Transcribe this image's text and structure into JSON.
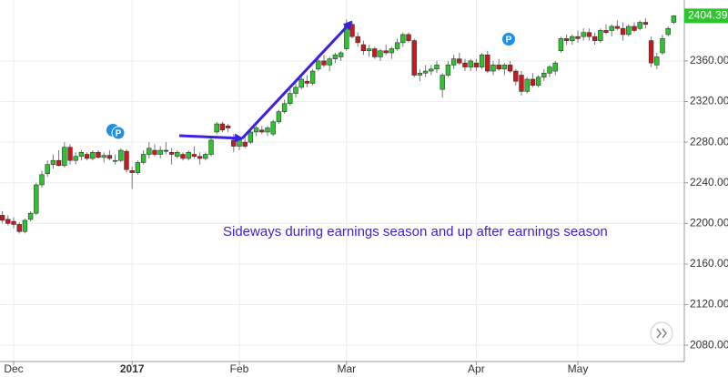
{
  "chart_data": {
    "type": "candlestick",
    "annotation": "Sideways during earnings season and up after earnings season",
    "markers": [
      "P",
      "P"
    ],
    "last_price": 2404.39,
    "up_color": "#2fc42f",
    "down_color": "#c8191f",
    "grid": true,
    "ylim": [
      2064,
      2420
    ],
    "yticks": [
      {
        "value": 2080,
        "label": "2080.00"
      },
      {
        "value": 2120,
        "label": "2120.00"
      },
      {
        "value": 2160,
        "label": "2160.00"
      },
      {
        "value": 2200,
        "label": "2200.00"
      },
      {
        "value": 2240,
        "label": "2240.00"
      },
      {
        "value": 2280,
        "label": "2280.00"
      },
      {
        "value": 2320,
        "label": "2320.00"
      },
      {
        "value": 2360,
        "label": "2360.00"
      }
    ],
    "categories": [
      null,
      null,
      "Dec",
      null,
      null,
      null,
      null,
      null,
      null,
      null,
      null,
      null,
      null,
      null,
      null,
      null,
      null,
      null,
      null,
      null,
      null,
      null,
      null,
      "2017",
      null,
      null,
      null,
      null,
      null,
      null,
      null,
      null,
      null,
      null,
      null,
      null,
      null,
      null,
      null,
      null,
      null,
      null,
      "Feb",
      null,
      null,
      null,
      null,
      null,
      null,
      null,
      null,
      null,
      null,
      null,
      null,
      null,
      null,
      null,
      null,
      null,
      null,
      "Mar",
      null,
      null,
      null,
      null,
      null,
      null,
      null,
      null,
      null,
      null,
      null,
      null,
      null,
      null,
      null,
      null,
      null,
      null,
      null,
      null,
      null,
      null,
      "Apr",
      null,
      null,
      null,
      null,
      null,
      null,
      null,
      null,
      null,
      null,
      null,
      null,
      null,
      null,
      null,
      null,
      null,
      "May",
      null,
      null,
      null,
      null,
      null,
      null,
      null,
      null,
      null,
      null,
      null,
      null,
      null,
      null,
      null,
      null,
      null
    ],
    "values": [
      [
        2208,
        2212,
        2200,
        2203
      ],
      [
        2204,
        2208,
        2198,
        2200
      ],
      [
        2202,
        2206,
        2195,
        2199
      ],
      [
        2199,
        2201,
        2190,
        2192
      ],
      [
        2192,
        2205,
        2190,
        2203
      ],
      [
        2204,
        2212,
        2202,
        2210
      ],
      [
        2210,
        2240,
        2208,
        2238
      ],
      [
        2238,
        2252,
        2235,
        2248
      ],
      [
        2249,
        2262,
        2246,
        2258
      ],
      [
        2258,
        2268,
        2254,
        2262
      ],
      [
        2262,
        2272,
        2256,
        2257
      ],
      [
        2257,
        2280,
        2255,
        2275
      ],
      [
        2275,
        2278,
        2258,
        2262
      ],
      [
        2262,
        2270,
        2258,
        2266
      ],
      [
        2266,
        2272,
        2262,
        2270
      ],
      [
        2268,
        2270,
        2262,
        2264
      ],
      [
        2264,
        2272,
        2262,
        2270
      ],
      [
        2270,
        2272,
        2264,
        2265
      ],
      [
        2265,
        2270,
        2260,
        2267
      ],
      [
        2267,
        2272,
        2262,
        2264
      ],
      [
        2262,
        2268,
        2258,
        2262
      ],
      [
        2262,
        2274,
        2260,
        2272
      ],
      [
        2271,
        2273,
        2250,
        2253
      ],
      [
        2252,
        2256,
        2234,
        2250
      ],
      [
        2250,
        2262,
        2248,
        2260
      ],
      [
        2260,
        2272,
        2258,
        2268
      ],
      [
        2268,
        2280,
        2264,
        2274
      ],
      [
        2272,
        2278,
        2266,
        2268
      ],
      [
        2268,
        2276,
        2264,
        2272
      ],
      [
        2272,
        2280,
        2268,
        2271
      ],
      [
        2270,
        2274,
        2258,
        2268
      ],
      [
        2266,
        2272,
        2264,
        2270
      ],
      [
        2268,
        2270,
        2262,
        2264
      ],
      [
        2264,
        2272,
        2262,
        2270
      ],
      [
        2268,
        2276,
        2264,
        2266
      ],
      [
        2266,
        2270,
        2258,
        2264
      ],
      [
        2264,
        2270,
        2262,
        2268
      ],
      [
        2268,
        2284,
        2266,
        2282
      ],
      [
        2290,
        2300,
        2288,
        2298
      ],
      [
        2298,
        2300,
        2290,
        2292
      ],
      [
        2296,
        2298,
        2290,
        2294
      ],
      [
        2282,
        2288,
        2270,
        2276
      ],
      [
        2276,
        2285,
        2272,
        2283
      ],
      [
        2280,
        2286,
        2274,
        2276
      ],
      [
        2280,
        2292,
        2278,
        2290
      ],
      [
        2290,
        2296,
        2286,
        2294
      ],
      [
        2292,
        2296,
        2288,
        2290
      ],
      [
        2290,
        2296,
        2286,
        2294
      ],
      [
        2288,
        2302,
        2286,
        2300
      ],
      [
        2300,
        2312,
        2298,
        2310
      ],
      [
        2310,
        2322,
        2308,
        2318
      ],
      [
        2318,
        2332,
        2316,
        2328
      ],
      [
        2328,
        2338,
        2324,
        2334
      ],
      [
        2334,
        2345,
        2332,
        2342
      ],
      [
        2340,
        2346,
        2334,
        2338
      ],
      [
        2338,
        2352,
        2336,
        2350
      ],
      [
        2352,
        2362,
        2350,
        2360
      ],
      [
        2360,
        2366,
        2354,
        2356
      ],
      [
        2356,
        2364,
        2350,
        2362
      ],
      [
        2362,
        2368,
        2358,
        2366
      ],
      [
        2364,
        2370,
        2360,
        2368
      ],
      [
        2372,
        2401,
        2370,
        2396
      ],
      [
        2396,
        2398,
        2382,
        2384
      ],
      [
        2384,
        2388,
        2374,
        2378
      ],
      [
        2376,
        2380,
        2366,
        2370
      ],
      [
        2370,
        2376,
        2364,
        2372
      ],
      [
        2372,
        2374,
        2362,
        2364
      ],
      [
        2364,
        2372,
        2360,
        2370
      ],
      [
        2370,
        2376,
        2366,
        2368
      ],
      [
        2368,
        2374,
        2362,
        2372
      ],
      [
        2372,
        2382,
        2370,
        2378
      ],
      [
        2378,
        2388,
        2374,
        2386
      ],
      [
        2386,
        2388,
        2378,
        2380
      ],
      [
        2380,
        2382,
        2344,
        2346
      ],
      [
        2346,
        2352,
        2340,
        2348
      ],
      [
        2348,
        2356,
        2344,
        2350
      ],
      [
        2350,
        2356,
        2346,
        2352
      ],
      [
        2352,
        2360,
        2348,
        2356
      ],
      [
        2332,
        2348,
        2324,
        2346
      ],
      [
        2346,
        2360,
        2344,
        2356
      ],
      [
        2356,
        2366,
        2352,
        2362
      ],
      [
        2362,
        2368,
        2356,
        2358
      ],
      [
        2358,
        2362,
        2350,
        2354
      ],
      [
        2354,
        2362,
        2350,
        2360
      ],
      [
        2358,
        2362,
        2350,
        2354
      ],
      [
        2354,
        2368,
        2352,
        2366
      ],
      [
        2366,
        2370,
        2348,
        2350
      ],
      [
        2350,
        2360,
        2346,
        2356
      ],
      [
        2356,
        2362,
        2350,
        2352
      ],
      [
        2352,
        2358,
        2346,
        2356
      ],
      [
        2356,
        2360,
        2348,
        2350
      ],
      [
        2350,
        2352,
        2336,
        2340
      ],
      [
        2346,
        2350,
        2326,
        2330
      ],
      [
        2330,
        2344,
        2328,
        2342
      ],
      [
        2342,
        2348,
        2334,
        2336
      ],
      [
        2336,
        2346,
        2334,
        2344
      ],
      [
        2344,
        2352,
        2340,
        2348
      ],
      [
        2348,
        2356,
        2344,
        2354
      ],
      [
        2350,
        2360,
        2346,
        2358
      ],
      [
        2370,
        2384,
        2368,
        2382
      ],
      [
        2382,
        2386,
        2376,
        2380
      ],
      [
        2380,
        2386,
        2376,
        2384
      ],
      [
        2384,
        2390,
        2378,
        2382
      ],
      [
        2384,
        2392,
        2380,
        2388
      ],
      [
        2388,
        2392,
        2380,
        2384
      ],
      [
        2384,
        2388,
        2376,
        2380
      ],
      [
        2380,
        2392,
        2378,
        2390
      ],
      [
        2390,
        2396,
        2386,
        2388
      ],
      [
        2390,
        2396,
        2384,
        2394
      ],
      [
        2394,
        2400,
        2390,
        2392
      ],
      [
        2392,
        2398,
        2380,
        2386
      ],
      [
        2386,
        2396,
        2384,
        2394
      ],
      [
        2394,
        2398,
        2388,
        2390
      ],
      [
        2392,
        2400,
        2390,
        2398
      ],
      [
        2398,
        2402,
        2392,
        2396
      ],
      [
        2380,
        2384,
        2354,
        2358
      ],
      [
        2356,
        2368,
        2352,
        2364
      ],
      [
        2368,
        2386,
        2366,
        2382
      ],
      [
        2386,
        2394,
        2384,
        2392
      ],
      [
        2398,
        2405,
        2396,
        2404.39
      ]
    ]
  }
}
